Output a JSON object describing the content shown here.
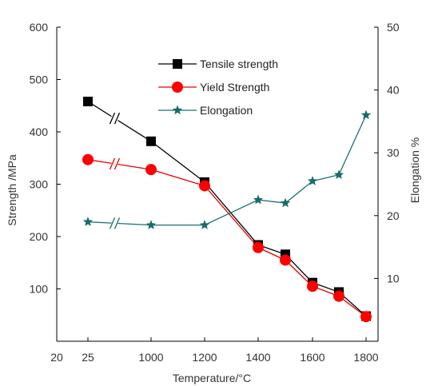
{
  "chart_data": {
    "type": "line",
    "xlabel": "Temperature/°C",
    "ylabel_left": "Strength /MPa",
    "ylabel_right": "Elongation %",
    "x_tick_labels": [
      "20",
      "25",
      "1000",
      "1200",
      "1400",
      "1600",
      "1800"
    ],
    "x": [
      "25",
      "1000",
      "1200",
      "1400",
      "1500",
      "1600",
      "1700",
      "1800"
    ],
    "axis_break_between": [
      "25",
      "1000"
    ],
    "ylim_left": [
      0,
      600
    ],
    "yticks_left": [
      100,
      200,
      300,
      400,
      500,
      600
    ],
    "ylim_right": [
      0,
      50
    ],
    "yticks_right": [
      10,
      20,
      30,
      40,
      50
    ],
    "legend_position": "top-center",
    "grid": false,
    "series": [
      {
        "name": "Tensile strength",
        "axis": "left",
        "marker": "square",
        "color": "#000000",
        "marker_color": "#000000",
        "values": [
          458,
          382,
          304,
          184,
          166,
          112,
          94,
          48
        ]
      },
      {
        "name": "Yield Strength",
        "axis": "left",
        "marker": "circle",
        "color": "#e60000",
        "marker_color": "#ff0000",
        "values": [
          347,
          328,
          297,
          179,
          155,
          105,
          86,
          47
        ]
      },
      {
        "name": "Elongation",
        "axis": "right",
        "marker": "star",
        "color": "#1a7070",
        "marker_color": "#1a6b6b",
        "values": [
          19,
          18.5,
          18.5,
          22.5,
          22,
          25.5,
          26.5,
          36
        ]
      }
    ]
  }
}
